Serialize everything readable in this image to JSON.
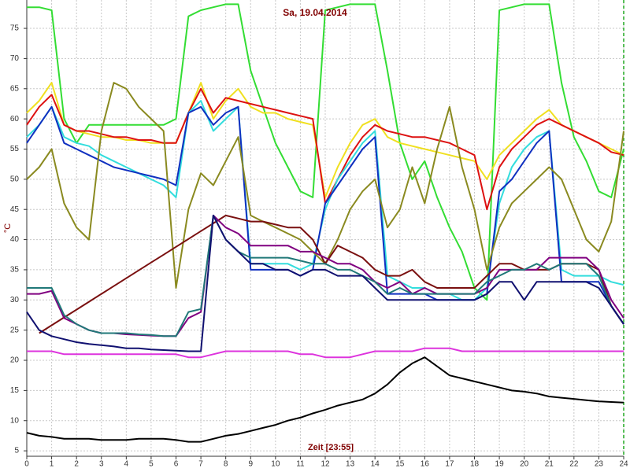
{
  "chart_data": {
    "type": "line",
    "title": "Sa, 19.04.2014",
    "y_label": "°C",
    "x_label": "Zeit [23:55]",
    "x": [
      0,
      0.5,
      1,
      1.5,
      2,
      2.5,
      3,
      3.5,
      4,
      4.5,
      5,
      5.5,
      6,
      6.5,
      7,
      7.5,
      8,
      8.5,
      9,
      9.5,
      10,
      10.5,
      11,
      11.5,
      12,
      12.5,
      13,
      13.5,
      14,
      14.5,
      15,
      15.5,
      16,
      16.5,
      17,
      17.5,
      18,
      18.5,
      19,
      19.5,
      20,
      20.5,
      21,
      21.5,
      22,
      22.5,
      23,
      23.5,
      24
    ],
    "xlim": [
      0,
      24
    ],
    "xticks": [
      0,
      1,
      2,
      3,
      4,
      5,
      6,
      7,
      8,
      9,
      10,
      11,
      12,
      13,
      14,
      15,
      16,
      17,
      18,
      19,
      20,
      21,
      22,
      23,
      24
    ],
    "ylim": [
      4.1,
      79.7
    ],
    "yticks": [
      5,
      10,
      15,
      20,
      25,
      30,
      35,
      40,
      45,
      50,
      55,
      60,
      65,
      70,
      75
    ],
    "grid": true,
    "series": [
      {
        "color": "#33dd33",
        "values": [
          78.5,
          78.5,
          78,
          60,
          56,
          59,
          59,
          59,
          59,
          59,
          59,
          59,
          60,
          77,
          78,
          78.5,
          79,
          79,
          68,
          62,
          56,
          52,
          48,
          47,
          78,
          78.5,
          79,
          79,
          79,
          68,
          56,
          50,
          53,
          47,
          42,
          38,
          32,
          30,
          78,
          78.5,
          79,
          79,
          79,
          66,
          57,
          53,
          48,
          47,
          55
        ]
      },
      {
        "color": "#f0e020",
        "values": [
          61,
          63,
          66,
          59,
          58,
          57.5,
          57,
          57,
          56.5,
          56.5,
          56,
          56,
          56,
          61,
          66,
          60,
          63,
          65,
          62,
          61,
          61,
          60,
          59.5,
          59,
          47,
          52,
          56,
          59,
          60,
          57,
          56,
          55.5,
          55,
          54.5,
          54,
          53.5,
          53,
          50,
          54,
          56,
          58,
          60,
          61.5,
          59,
          58,
          57,
          56,
          55,
          54
        ]
      },
      {
        "color": "#dd1111",
        "values": [
          59,
          62,
          64,
          59,
          58,
          58,
          57.5,
          57,
          57,
          56.5,
          56.5,
          56,
          56,
          61,
          65,
          61,
          63.5,
          63,
          62.5,
          62,
          61.5,
          61,
          60.5,
          60,
          46,
          50,
          54,
          57,
          59,
          58,
          57.5,
          57,
          57,
          56.5,
          56,
          55,
          54,
          45,
          52,
          55,
          57,
          59,
          60,
          59,
          58,
          57,
          56,
          54.5,
          54
        ]
      },
      {
        "color": "#33dddd",
        "values": [
          57,
          59,
          62,
          57,
          56,
          55.5,
          54,
          53,
          52,
          51,
          50,
          49,
          47,
          61,
          63,
          58,
          60,
          62,
          36,
          36,
          36,
          36,
          35,
          36,
          45,
          50,
          53,
          56,
          58,
          34,
          33,
          32,
          32,
          31,
          31,
          30,
          30,
          32,
          46,
          52,
          55,
          57,
          58,
          35,
          34,
          34,
          34,
          33,
          32.5
        ]
      },
      {
        "color": "#1030c0",
        "values": [
          56,
          59,
          62,
          56,
          55,
          54,
          53,
          52,
          51.5,
          51,
          50.5,
          50,
          49,
          61,
          62,
          59,
          61,
          62,
          35,
          35,
          35,
          35,
          34,
          35,
          46,
          49,
          52,
          55,
          57,
          31,
          31,
          31,
          31,
          30,
          30,
          30,
          30,
          31,
          48,
          50,
          53,
          56,
          58,
          33,
          33,
          33,
          33,
          29,
          26
        ]
      },
      {
        "color": "#8a8a20",
        "values": [
          50,
          52,
          55,
          46,
          42,
          40,
          58,
          66,
          65,
          62,
          60,
          58,
          32,
          45,
          51,
          49,
          53,
          57,
          44,
          43,
          42,
          41,
          40,
          38,
          36,
          40,
          45,
          48,
          50,
          42,
          45,
          52,
          46,
          55,
          62,
          52,
          45,
          35,
          42,
          46,
          48,
          50,
          52,
          50,
          45,
          40,
          38,
          43,
          58
        ]
      },
      {
        "color": "#7a1010",
        "values": [
          null,
          24.5,
          25.8,
          27.1,
          28.4,
          29.7,
          31,
          32.3,
          33.6,
          34.9,
          36.2,
          37.5,
          38.8,
          40.1,
          41.4,
          42.7,
          44,
          43.5,
          43,
          43,
          42.5,
          42,
          42,
          40,
          36,
          39,
          38,
          37,
          35,
          34,
          34,
          35,
          33,
          32,
          32,
          32,
          32,
          34,
          36,
          36,
          35,
          35,
          35,
          36,
          36,
          36,
          35,
          29,
          26
        ]
      },
      {
        "color": "#800080",
        "values": [
          31,
          31,
          31.5,
          27,
          26,
          25,
          24.5,
          24.5,
          24.3,
          24.2,
          24.1,
          24,
          24,
          27,
          28,
          44,
          42,
          41,
          39,
          39,
          39,
          39,
          38,
          38,
          37,
          36,
          36,
          35,
          33,
          32,
          33,
          31,
          32,
          31,
          31,
          31,
          31,
          32,
          35,
          35,
          35,
          35,
          37,
          37,
          37,
          37,
          35,
          30,
          27
        ]
      },
      {
        "color": "#207878",
        "values": [
          32,
          32,
          32,
          27.5,
          26,
          25,
          24.5,
          24.5,
          24.5,
          24.3,
          24.2,
          24,
          24,
          28,
          28.5,
          44,
          40,
          38,
          37,
          37,
          37,
          37,
          36.5,
          36,
          36,
          35,
          35,
          34,
          33,
          31,
          32,
          31,
          31,
          31,
          31,
          31,
          31,
          33,
          34,
          35,
          35,
          36,
          35,
          36,
          36,
          36,
          34,
          29,
          26
        ]
      },
      {
        "color": "#101070",
        "values": [
          28,
          25,
          24,
          23.5,
          23,
          22.7,
          22.5,
          22.3,
          22,
          22,
          21.8,
          21.7,
          21.6,
          21.5,
          21.5,
          44,
          40,
          38,
          36,
          36,
          35,
          35,
          34,
          35,
          35,
          34,
          34,
          34,
          32,
          30,
          30,
          30,
          30,
          30,
          30,
          30,
          30,
          31,
          33,
          33,
          30,
          33,
          33,
          33,
          33,
          33,
          32,
          29,
          26
        ]
      },
      {
        "color": "#dd33dd",
        "values": [
          21.5,
          21.5,
          21.5,
          21,
          21,
          21,
          21,
          21,
          21,
          21,
          21,
          21,
          21,
          20.5,
          20.5,
          21,
          21.5,
          21.5,
          21.5,
          21.5,
          21.5,
          21.5,
          21,
          21,
          20.5,
          20.5,
          20.5,
          21,
          21.5,
          21.5,
          21.5,
          21.5,
          22,
          22,
          22,
          21.5,
          21.5,
          21.5,
          21.5,
          21.5,
          21.5,
          21.5,
          21.5,
          21.5,
          21.5,
          21.5,
          21.5,
          21.5,
          21.5
        ]
      },
      {
        "color": "#000000",
        "values": [
          8,
          7.5,
          7.3,
          7,
          7,
          7,
          6.8,
          6.8,
          6.8,
          7,
          7,
          7,
          6.8,
          6.5,
          6.5,
          7,
          7.5,
          7.8,
          8.3,
          8.8,
          9.3,
          10,
          10.5,
          11.2,
          11.8,
          12.5,
          13,
          13.5,
          14.5,
          16,
          18,
          19.5,
          20.5,
          19,
          17.5,
          17,
          16.5,
          16,
          15.5,
          15,
          14.8,
          14.5,
          14,
          13.8,
          13.6,
          13.4,
          13.2,
          13.1,
          13
        ]
      }
    ]
  }
}
